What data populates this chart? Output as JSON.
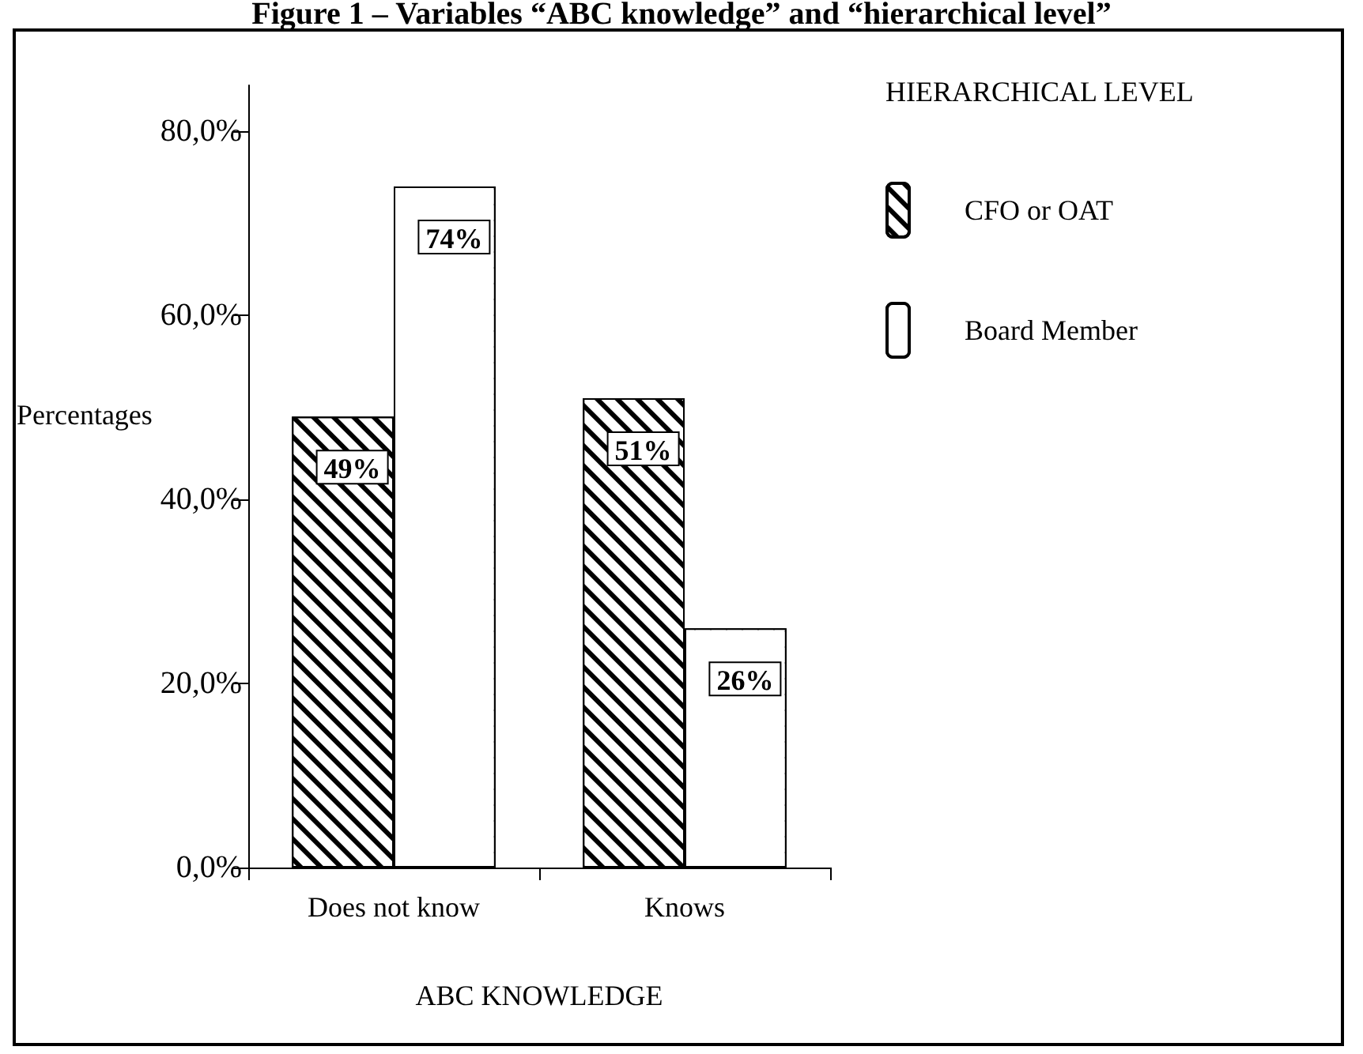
{
  "chart_data": {
    "type": "bar",
    "title": "Figure 1 – Variables “ABC knowledge” and “hierarchical level”",
    "xlabel": "ABC KNOWLEDGE",
    "ylabel": "Percentages",
    "legend_title": "HIERARCHICAL LEVEL",
    "categories": [
      "Does not know",
      "Knows"
    ],
    "series": [
      {
        "name": "CFO or OAT",
        "color": "#ffffff",
        "values": [
          49,
          51
        ],
        "value_labels": [
          "49%",
          "51%"
        ]
      },
      {
        "name": "Board Member",
        "color": "#ffffff",
        "values": [
          74,
          26
        ],
        "value_labels": [
          "74%",
          "26%"
        ]
      }
    ],
    "ylim": [
      0,
      85
    ],
    "yticks": [
      {
        "value": 0,
        "label": "0,0%"
      },
      {
        "value": 20,
        "label": "20,0%"
      },
      {
        "value": 40,
        "label": "40,0%"
      },
      {
        "value": 60,
        "label": "60,0%"
      },
      {
        "value": 80,
        "label": "80,0%"
      }
    ],
    "grid": false,
    "legend": "top right"
  }
}
